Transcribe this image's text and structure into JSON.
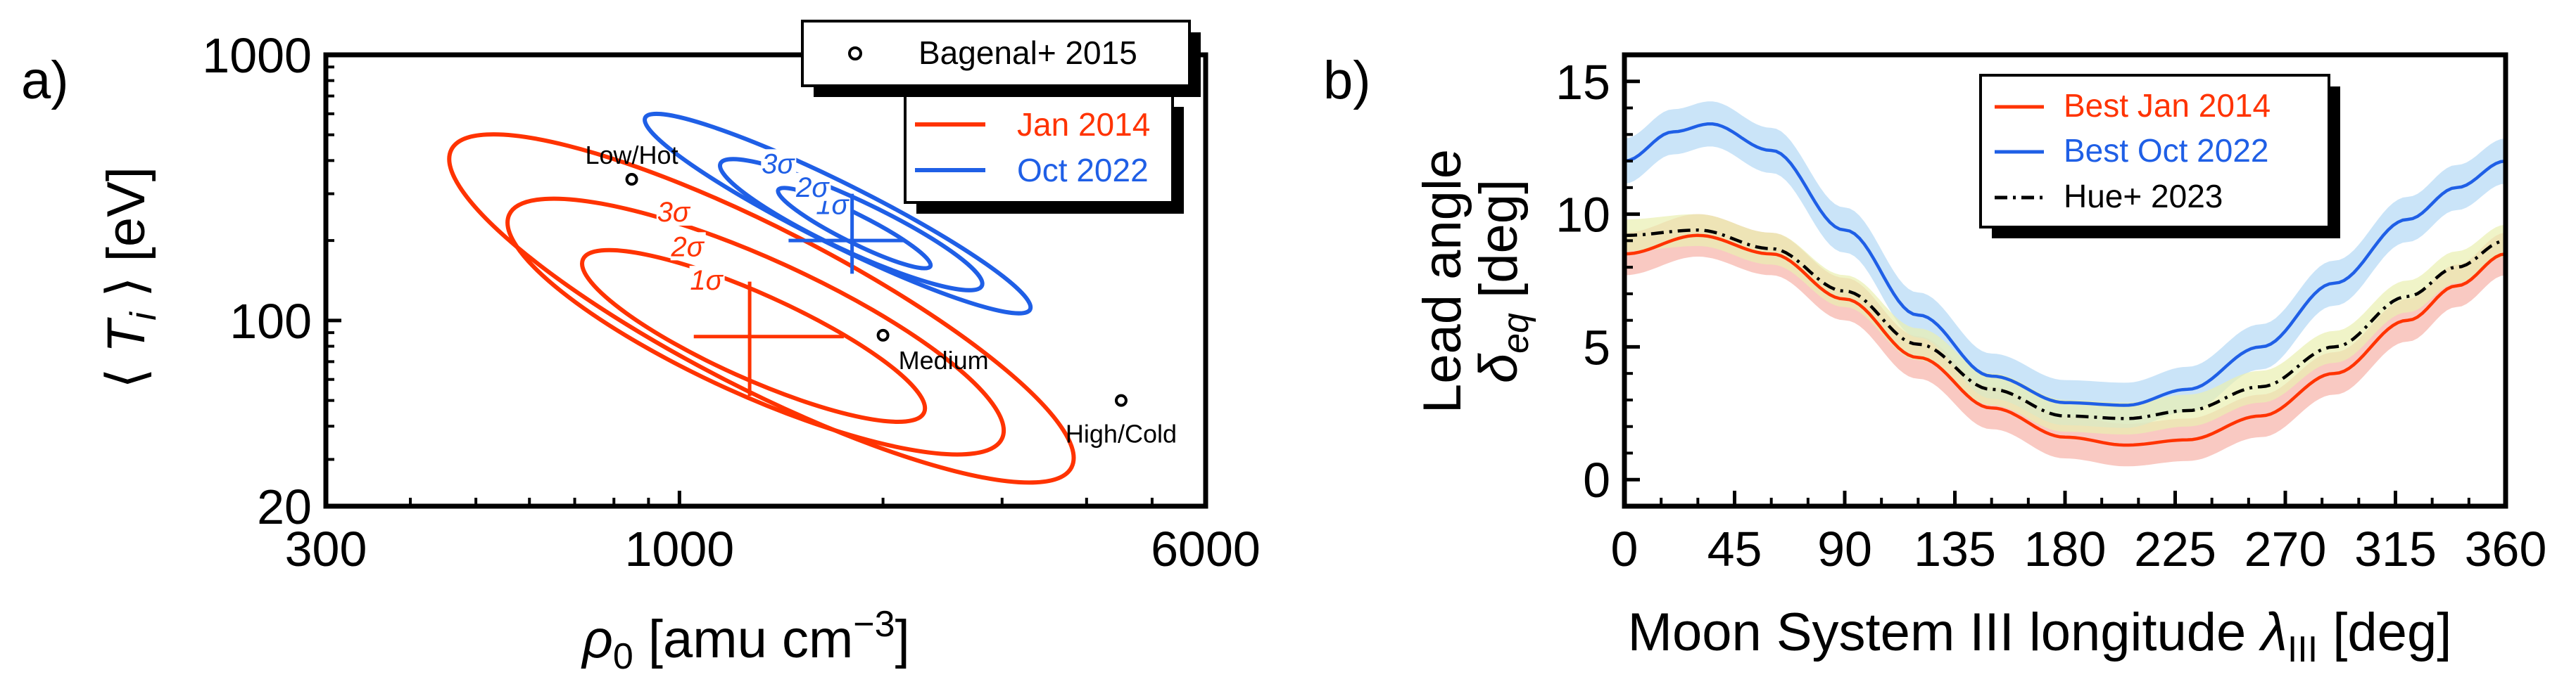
{
  "chart_data": [
    {
      "panel_label": "a)",
      "type": "scatter",
      "xscale": "log",
      "yscale": "log",
      "xlim": [
        300,
        6000
      ],
      "ylim": [
        20,
        1000
      ],
      "xlabel": "ρ0 [amu cm−3]",
      "ylabel": "⟨Ti⟩ [eV]",
      "xticks": [
        "300",
        "1000",
        "6000"
      ],
      "yticks": [
        "20",
        "100",
        "1000"
      ],
      "legend": {
        "placement": "top-right",
        "entries": [
          "Bagenal+ 2015",
          "Jan 2014",
          "Oct 2022"
        ]
      },
      "points": [
        {
          "label": "Low/Hot",
          "x": 850,
          "y": 340
        },
        {
          "label": "Medium",
          "x": 2000,
          "y": 88
        },
        {
          "label": "High/Cold",
          "x": 4500,
          "y": 50
        }
      ],
      "contours": [
        {
          "series": "Jan 2014",
          "color": "#ff3300",
          "center": {
            "x": 1270,
            "y": 87
          },
          "crosshair": {
            "x_range": [
              1050,
              1750
            ],
            "y_range": [
              52,
              140
            ]
          },
          "levels": [
            {
              "label": "1σ",
              "ends": [
                [
                  720,
                  170
                ],
                [
                  2300,
                  45
                ]
              ],
              "halfwidth": 0.09
            },
            {
              "label": "2σ",
              "ends": [
                [
                  560,
                  250
                ],
                [
                  3000,
                  36
                ]
              ],
              "halfwidth": 0.145
            },
            {
              "label": "3σ",
              "ends": [
                [
                  460,
                  440
                ],
                [
                  3800,
                  28
                ]
              ],
              "halfwidth": 0.17
            }
          ]
        },
        {
          "series": "Oct 2022",
          "color": "#1f5fe6",
          "center": {
            "x": 1800,
            "y": 200
          },
          "crosshair": {
            "x_range": [
              1450,
              2150
            ],
            "y_range": [
              150,
              300
            ]
          },
          "levels": [
            {
              "label": "1σ",
              "ends": [
                [
                  1400,
                  310
                ],
                [
                  2350,
                  160
                ]
              ],
              "halfwidth": 0.03
            },
            {
              "label": "2σ",
              "ends": [
                [
                  1150,
                  390
                ],
                [
                  2800,
                  135
                ]
              ],
              "halfwidth": 0.055
            },
            {
              "label": "3σ",
              "ends": [
                [
                  890,
                  580
                ],
                [
                  3300,
                  110
                ]
              ],
              "halfwidth": 0.065
            }
          ]
        }
      ]
    },
    {
      "panel_label": "b)",
      "type": "line",
      "xlim": [
        0,
        360
      ],
      "ylim": [
        -1,
        16
      ],
      "xticks": [
        0,
        45,
        90,
        135,
        180,
        225,
        270,
        315,
        360
      ],
      "yticks": [
        0,
        5,
        10,
        15
      ],
      "xlabel": "Moon System III longitude λIII [deg]",
      "ylabel_line1": "Lead angle",
      "ylabel_line2": "δeq [deg]",
      "legend": {
        "placement": "top-center"
      },
      "series": [
        {
          "name": "Best Jan 2014",
          "color": "#ff3300",
          "band_color": "#f7b2a8",
          "style": "solid",
          "x": [
            0,
            30,
            60,
            90,
            120,
            150,
            180,
            205,
            230,
            260,
            290,
            320,
            340,
            360
          ],
          "y": [
            8.5,
            9.2,
            8.5,
            6.8,
            4.6,
            2.7,
            1.6,
            1.3,
            1.5,
            2.4,
            4.0,
            6.0,
            7.3,
            8.5
          ],
          "band_halfwidth": 0.8
        },
        {
          "name": "Best Oct 2022",
          "color": "#1f5fe6",
          "band_color": "#b3d8f5",
          "style": "solid",
          "x": [
            0,
            20,
            35,
            60,
            90,
            120,
            150,
            180,
            205,
            230,
            260,
            290,
            320,
            340,
            360
          ],
          "y": [
            12.0,
            13.1,
            13.4,
            12.4,
            9.4,
            6.2,
            3.9,
            2.9,
            2.8,
            3.4,
            5.0,
            7.4,
            9.8,
            11.0,
            12.0
          ],
          "band_halfwidth": 0.85
        },
        {
          "name": "Hue+ 2023",
          "color": "#000000",
          "band_color": "#e9f0b0",
          "style": "dashdot",
          "x": [
            0,
            30,
            60,
            90,
            120,
            150,
            180,
            205,
            230,
            260,
            290,
            320,
            340,
            360
          ],
          "y": [
            9.2,
            9.4,
            8.7,
            7.1,
            5.1,
            3.4,
            2.4,
            2.3,
            2.6,
            3.5,
            5.0,
            6.9,
            8.0,
            9.0
          ],
          "band_halfwidth": 0.6
        }
      ]
    }
  ]
}
